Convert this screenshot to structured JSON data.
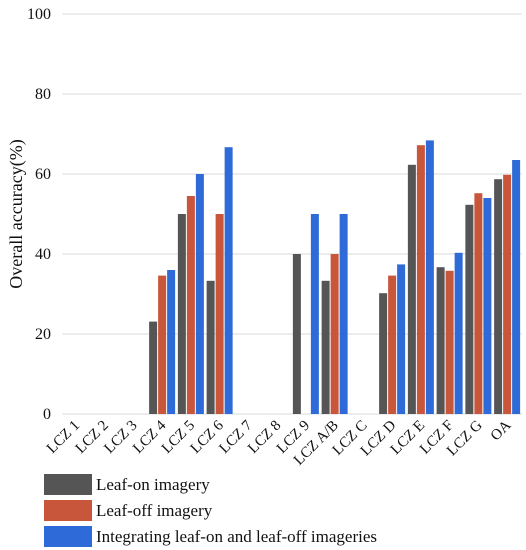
{
  "chart_data": {
    "type": "bar",
    "title": "",
    "xlabel": "",
    "ylabel": "Overall accuracy(%)",
    "ylim": [
      0,
      100
    ],
    "yticks": [
      0,
      20,
      40,
      60,
      80,
      100
    ],
    "grid": true,
    "legend_position": "bottom-left",
    "categories": [
      "LCZ 1",
      "LCZ 2",
      "LCZ 3",
      "LCZ 4",
      "LCZ 5",
      "LCZ 6",
      "LCZ 7",
      "LCZ 8",
      "LCZ 9",
      "LCZ A/B",
      "LCZ C",
      "LCZ D",
      "LCZ E",
      "LCZ F",
      "LCZ G",
      "OA"
    ],
    "series": [
      {
        "name": "Leaf-on imagery",
        "color": "#555555",
        "values": [
          0,
          0,
          0,
          23.1,
          50.0,
          33.3,
          0,
          0,
          40.0,
          33.3,
          0,
          30.2,
          62.3,
          36.7,
          52.3,
          58.7
        ]
      },
      {
        "name": "Leaf-off imagery",
        "color": "#c8563a",
        "values": [
          0,
          0,
          0,
          34.6,
          54.5,
          50.0,
          0,
          0,
          0,
          40.0,
          0,
          34.6,
          67.2,
          35.8,
          55.2,
          59.8
        ]
      },
      {
        "name": "Integrating leaf-on and leaf-off imageries",
        "color": "#2f6bd8",
        "values": [
          0,
          0,
          0,
          36.0,
          60.0,
          66.7,
          0,
          0,
          50.0,
          50.0,
          0,
          37.4,
          68.4,
          40.3,
          54.0,
          63.5
        ]
      }
    ]
  }
}
